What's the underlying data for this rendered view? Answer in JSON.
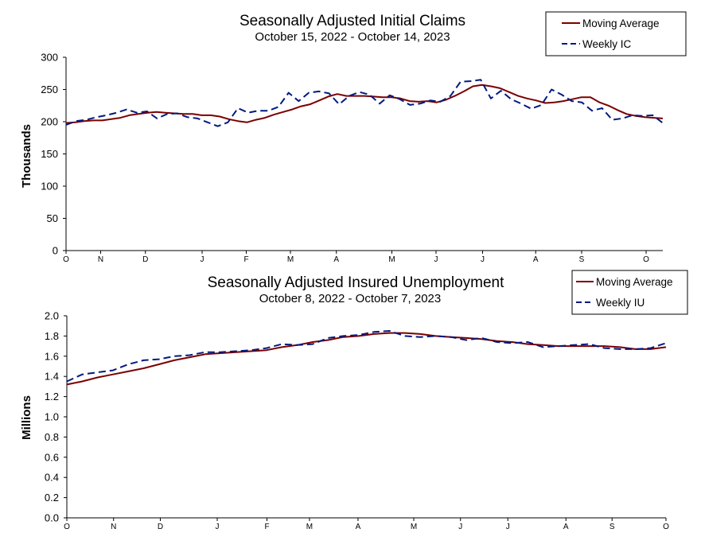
{
  "colors": {
    "moving_average": "#7a0000",
    "weekly": "#001a80",
    "axis": "#000000",
    "frame": "#000000"
  },
  "chart_data": [
    {
      "type": "line",
      "title": "Seasonally Adjusted Initial Claims",
      "subtitle": "October 15, 2022 - October 14, 2023",
      "xlabel": "",
      "ylabel": "Thousands",
      "ylim": [
        0,
        300
      ],
      "ytick_values": [
        0,
        50,
        100,
        150,
        200,
        250,
        300
      ],
      "ytick_labels": [
        "0",
        "50",
        "100",
        "150",
        "200",
        "250",
        "300"
      ],
      "month_labels": [
        "O",
        "N",
        "D",
        "J",
        "F",
        "M",
        "A",
        "M",
        "J",
        "J",
        "A",
        "S",
        "O"
      ],
      "month_positions": [
        0,
        5.8,
        13.3,
        22.8,
        30.2,
        37.6,
        45.3,
        54.6,
        62.0,
        69.8,
        78.7,
        86.4,
        97.2
      ],
      "grid": false,
      "legend_position": "top-right",
      "series": [
        {
          "name": "Moving Average",
          "style": "solid",
          "values": [
            198,
            199,
            201,
            202,
            202,
            204,
            206,
            210,
            212,
            214,
            215,
            214,
            213,
            212,
            212,
            210,
            210,
            208,
            204,
            201,
            199,
            203,
            206,
            211,
            215,
            219,
            224,
            227,
            233,
            239,
            243,
            240,
            240,
            240,
            239,
            238,
            238,
            236,
            232,
            231,
            232,
            230,
            234,
            240,
            247,
            255,
            257,
            255,
            252,
            246,
            240,
            236,
            233,
            229,
            230,
            232,
            235,
            238,
            238,
            230,
            225,
            218,
            212,
            209,
            207,
            206,
            205
          ]
        },
        {
          "name": "Weekly IC",
          "style": "dashed",
          "values": [
            195,
            201,
            203,
            207,
            210,
            214,
            219,
            214,
            216,
            205,
            212,
            213,
            207,
            205,
            199,
            193,
            199,
            221,
            214,
            217,
            217,
            223,
            245,
            232,
            245,
            247,
            244,
            227,
            240,
            246,
            242,
            228,
            241,
            235,
            226,
            228,
            233,
            231,
            240,
            262,
            263,
            265,
            236,
            248,
            235,
            228,
            220,
            226,
            250,
            242,
            232,
            230,
            217,
            221,
            203,
            205,
            210,
            209,
            210,
            198
          ]
        }
      ]
    },
    {
      "type": "line",
      "title": "Seasonally Adjusted Insured Unemployment",
      "subtitle": "October 8, 2022 - October 7, 2023",
      "xlabel": "",
      "ylabel": "Millions",
      "ylim": [
        0.0,
        2.0
      ],
      "ytick_values": [
        0.0,
        0.2,
        0.4,
        0.6,
        0.8,
        1.0,
        1.2,
        1.4,
        1.6,
        1.8,
        2.0
      ],
      "ytick_labels": [
        "0.0",
        "0.2",
        "0.4",
        "0.6",
        "0.8",
        "1.0",
        "1.2",
        "1.4",
        "1.6",
        "1.8",
        "2.0"
      ],
      "month_labels": [
        "O",
        "N",
        "D",
        "J",
        "F",
        "M",
        "A",
        "M",
        "J",
        "J",
        "A",
        "S",
        "O"
      ],
      "month_positions": [
        0,
        7.8,
        15.6,
        25.1,
        33.4,
        40.5,
        48.6,
        57.9,
        65.7,
        73.6,
        83.3,
        91.0,
        100
      ],
      "grid": false,
      "legend_position": "top-right",
      "series": [
        {
          "name": "Moving Average",
          "style": "solid",
          "values": [
            1.32,
            1.35,
            1.39,
            1.42,
            1.45,
            1.48,
            1.52,
            1.56,
            1.59,
            1.62,
            1.63,
            1.64,
            1.65,
            1.66,
            1.69,
            1.71,
            1.74,
            1.76,
            1.79,
            1.8,
            1.82,
            1.83,
            1.83,
            1.82,
            1.8,
            1.79,
            1.78,
            1.77,
            1.75,
            1.74,
            1.72,
            1.71,
            1.7,
            1.7,
            1.7,
            1.7,
            1.69,
            1.67,
            1.67,
            1.69
          ]
        },
        {
          "name": "Weekly IU",
          "style": "dashed",
          "values": [
            1.35,
            1.42,
            1.44,
            1.46,
            1.52,
            1.56,
            1.57,
            1.6,
            1.61,
            1.64,
            1.64,
            1.65,
            1.66,
            1.68,
            1.72,
            1.71,
            1.72,
            1.78,
            1.8,
            1.81,
            1.84,
            1.85,
            1.8,
            1.79,
            1.8,
            1.79,
            1.76,
            1.78,
            1.74,
            1.73,
            1.74,
            1.69,
            1.7,
            1.71,
            1.72,
            1.68,
            1.67,
            1.67,
            1.68,
            1.73
          ]
        }
      ]
    }
  ]
}
